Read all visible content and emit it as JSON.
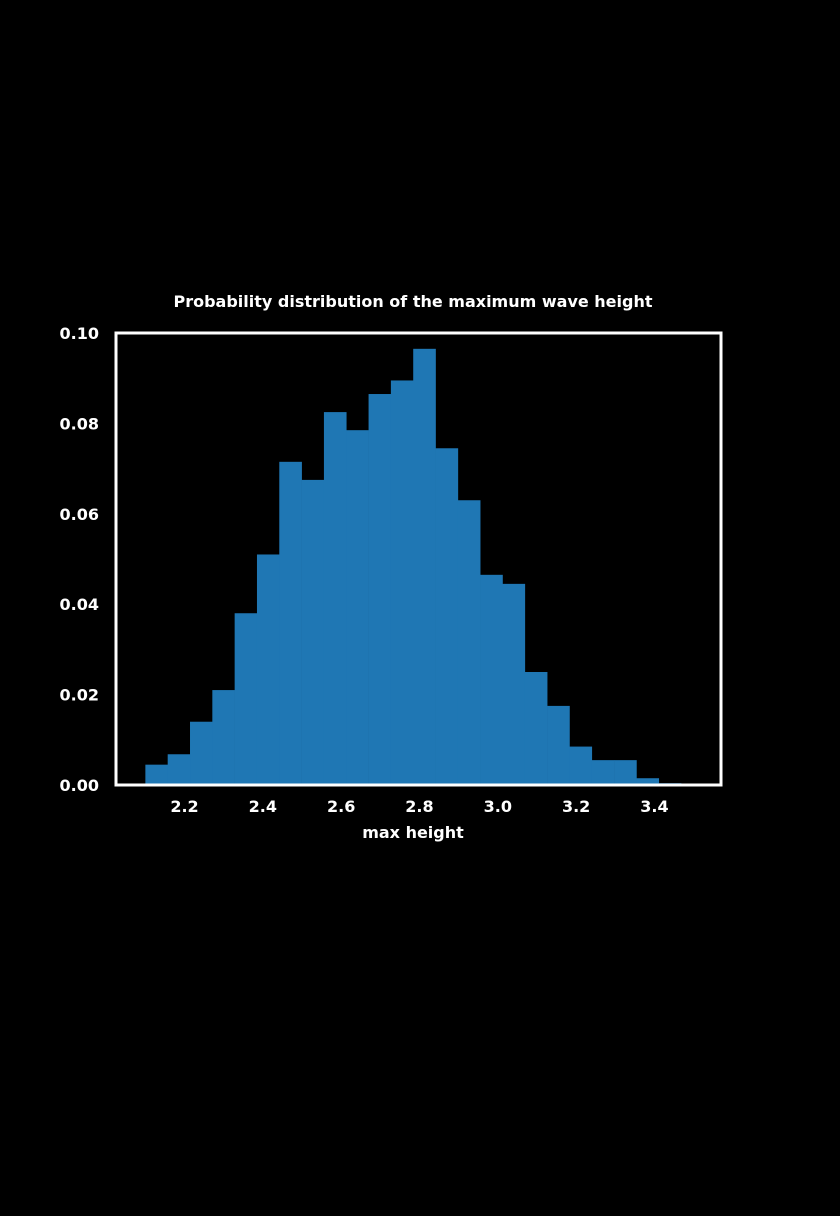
{
  "chart_data": {
    "type": "bar",
    "title": "Probability distribution of the maximum wave height",
    "xlabel": "max height",
    "ylabel": "",
    "xlim": [
      2.025,
      3.57
    ],
    "ylim": [
      0.0,
      0.1
    ],
    "grid": false,
    "bar_color": "#1f77b4",
    "frame_color": "#ffffff",
    "x_ticks": [
      {
        "value": 2.2,
        "label": "2.2"
      },
      {
        "value": 2.4,
        "label": "2.4"
      },
      {
        "value": 2.6,
        "label": "2.6"
      },
      {
        "value": 2.8,
        "label": "2.8"
      },
      {
        "value": 3.0,
        "label": "3.0"
      },
      {
        "value": 3.2,
        "label": "3.2"
      },
      {
        "value": 3.4,
        "label": "3.4"
      }
    ],
    "y_ticks": [
      {
        "value": 0.0,
        "label": "0.00"
      },
      {
        "value": 0.02,
        "label": "0.02"
      },
      {
        "value": 0.04,
        "label": "0.04"
      },
      {
        "value": 0.06,
        "label": "0.06"
      },
      {
        "value": 0.08,
        "label": "0.08"
      },
      {
        "value": 0.1,
        "label": "0.10"
      }
    ],
    "bins": [
      {
        "x0": 2.1,
        "x1": 2.157,
        "value": 0.0045
      },
      {
        "x0": 2.157,
        "x1": 2.214,
        "value": 0.0068
      },
      {
        "x0": 2.214,
        "x1": 2.271,
        "value": 0.014
      },
      {
        "x0": 2.271,
        "x1": 2.328,
        "value": 0.021
      },
      {
        "x0": 2.328,
        "x1": 2.385,
        "value": 0.038
      },
      {
        "x0": 2.385,
        "x1": 2.442,
        "value": 0.051
      },
      {
        "x0": 2.442,
        "x1": 2.499,
        "value": 0.0715
      },
      {
        "x0": 2.499,
        "x1": 2.556,
        "value": 0.0675
      },
      {
        "x0": 2.556,
        "x1": 2.613,
        "value": 0.0825
      },
      {
        "x0": 2.613,
        "x1": 2.67,
        "value": 0.0785
      },
      {
        "x0": 2.67,
        "x1": 2.727,
        "value": 0.0865
      },
      {
        "x0": 2.727,
        "x1": 2.784,
        "value": 0.0895
      },
      {
        "x0": 2.784,
        "x1": 2.841,
        "value": 0.0965
      },
      {
        "x0": 2.841,
        "x1": 2.898,
        "value": 0.0745
      },
      {
        "x0": 2.898,
        "x1": 2.955,
        "value": 0.063
      },
      {
        "x0": 2.955,
        "x1": 3.012,
        "value": 0.0465
      },
      {
        "x0": 3.012,
        "x1": 3.069,
        "value": 0.0445
      },
      {
        "x0": 3.069,
        "x1": 3.126,
        "value": 0.025
      },
      {
        "x0": 3.126,
        "x1": 3.183,
        "value": 0.0175
      },
      {
        "x0": 3.183,
        "x1": 3.24,
        "value": 0.0085
      },
      {
        "x0": 3.24,
        "x1": 3.297,
        "value": 0.0055
      },
      {
        "x0": 3.297,
        "x1": 3.354,
        "value": 0.0055
      },
      {
        "x0": 3.354,
        "x1": 3.411,
        "value": 0.0015
      },
      {
        "x0": 3.411,
        "x1": 3.468,
        "value": 0.0004
      },
      {
        "x0": 3.468,
        "x1": 3.525,
        "value": 0.0003
      }
    ]
  }
}
